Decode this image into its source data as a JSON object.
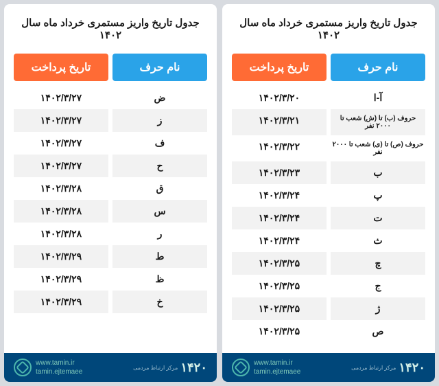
{
  "title": "جدول تاریخ واریز مستمری خرداد ماه سال ۱۴۰۲",
  "columns": {
    "name": "نام حرف",
    "date": "تاریخ پرداخت"
  },
  "colors": {
    "page_bg": "#d8dbe0",
    "panel_bg": "#ffffff",
    "name_header": "#2aa3e8",
    "date_header": "#ff6b35",
    "row_alt": "#f2f2f2",
    "footer_bg": "#00477a",
    "footer_accent": "#4db6ac"
  },
  "right_table": {
    "rows": [
      {
        "name": "آ-ا",
        "date": "۱۴۰۲/۳/۲۰",
        "small": false
      },
      {
        "name": "حروف (ب) تا (ش) شعب تا ۲۰۰۰ نفر",
        "date": "۱۴۰۲/۳/۲۱",
        "small": true
      },
      {
        "name": "حروف (ص) تا (ی) شعب تا ۲۰۰۰ نفر",
        "date": "۱۴۰۲/۳/۲۲",
        "small": true
      },
      {
        "name": "ب",
        "date": "۱۴۰۲/۳/۲۳",
        "small": false
      },
      {
        "name": "پ",
        "date": "۱۴۰۲/۳/۲۴",
        "small": false
      },
      {
        "name": "ت",
        "date": "۱۴۰۲/۳/۲۴",
        "small": false
      },
      {
        "name": "ث",
        "date": "۱۴۰۲/۳/۲۴",
        "small": false
      },
      {
        "name": "چ",
        "date": "۱۴۰۲/۳/۲۵",
        "small": false
      },
      {
        "name": "ج",
        "date": "۱۴۰۲/۳/۲۵",
        "small": false
      },
      {
        "name": "ژ",
        "date": "۱۴۰۲/۳/۲۵",
        "small": false
      },
      {
        "name": "ص",
        "date": "۱۴۰۲/۳/۲۵",
        "small": false
      }
    ]
  },
  "left_table": {
    "rows": [
      {
        "name": "ض",
        "date": "۱۴۰۲/۳/۲۷",
        "small": false
      },
      {
        "name": "ز",
        "date": "۱۴۰۲/۳/۲۷",
        "small": false
      },
      {
        "name": "ف",
        "date": "۱۴۰۲/۳/۲۷",
        "small": false
      },
      {
        "name": "ح",
        "date": "۱۴۰۲/۳/۲۷",
        "small": false
      },
      {
        "name": "ق",
        "date": "۱۴۰۲/۳/۲۸",
        "small": false
      },
      {
        "name": "س",
        "date": "۱۴۰۲/۳/۲۸",
        "small": false
      },
      {
        "name": "ر",
        "date": "۱۴۰۲/۳/۲۸",
        "small": false
      },
      {
        "name": "ط",
        "date": "۱۴۰۲/۳/۲۹",
        "small": false
      },
      {
        "name": "ظ",
        "date": "۱۴۰۲/۳/۲۹",
        "small": false
      },
      {
        "name": "خ",
        "date": "۱۴۰۲/۳/۲۹",
        "small": false
      }
    ]
  },
  "footer": {
    "site": "www.tamin.ir",
    "social": "tamin.ejtemaee",
    "phone": "۱۴۲۰",
    "phone_label": "مرکز ارتباط مردمی"
  }
}
